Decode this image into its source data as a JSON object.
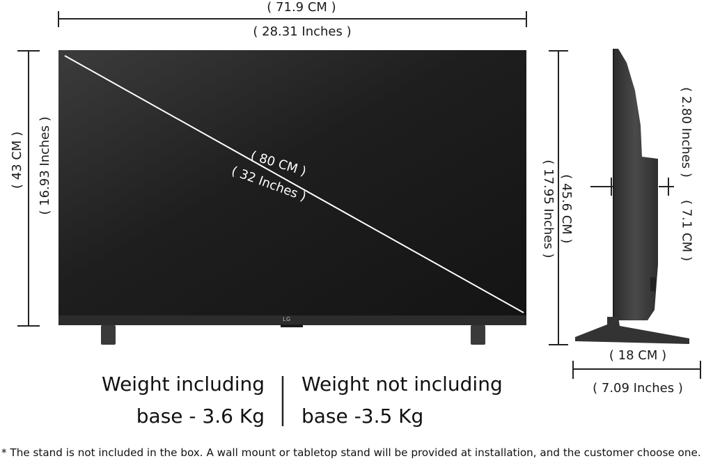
{
  "dimensions": {
    "width_cm": "( 71.9 CM )",
    "width_in": "( 28.31 Inches )",
    "height_cm": "( 43 CM )",
    "height_in": "( 16.93 Inches )",
    "diagonal_cm": "( 80 CM )",
    "diagonal_in": "( 32 Inches )",
    "height_with_stand_in": "( 17.95 Inches )",
    "height_with_stand_cm": "( 45.6 CM )",
    "depth_in": "( 2.80 Inches )",
    "depth_cm": "( 7.1 CM )",
    "stand_width_cm": "( 18 CM )",
    "stand_width_in": "( 7.09 Inches )"
  },
  "brand_logo": "LG",
  "weights": {
    "with_base_line1": "Weight including",
    "with_base_line2": "base - 3.6 Kg",
    "without_base_line1": "Weight not including",
    "without_base_line2": "base -3.5 Kg"
  },
  "footnote": "* The stand is not included in the box. A wall mount or tabletop stand will be provided at installation, and the customer choose one.",
  "colors": {
    "screen": "#1c1c1c",
    "bezel": "#2a2a2a",
    "line": "#222222",
    "body_side": "#3a3a3a"
  }
}
